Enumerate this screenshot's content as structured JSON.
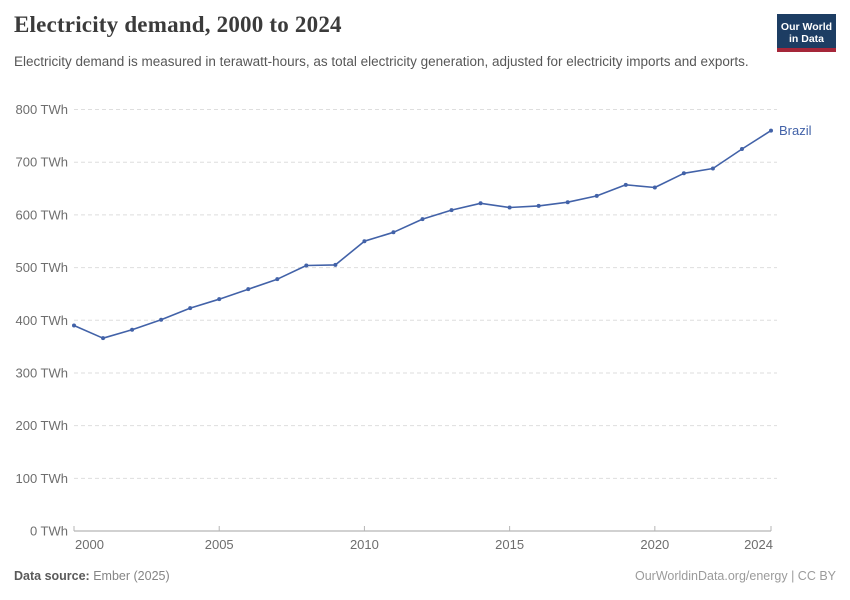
{
  "header": {
    "title": "Electricity demand, 2000 to 2024",
    "subtitle": "Electricity demand is measured in terawatt-hours, as total electricity generation, adjusted for electricity imports and exports.",
    "logo": {
      "line1": "Our World",
      "line2": "in Data"
    }
  },
  "chart_data": {
    "type": "line",
    "title": "Electricity demand, 2000 to 2024",
    "unit": "TWh",
    "x": [
      2000,
      2001,
      2002,
      2003,
      2004,
      2005,
      2006,
      2007,
      2008,
      2009,
      2010,
      2011,
      2012,
      2013,
      2014,
      2015,
      2016,
      2017,
      2018,
      2019,
      2020,
      2021,
      2022,
      2023,
      2024
    ],
    "series": [
      {
        "name": "Brazil",
        "color": "#4262a8",
        "values": [
          390,
          366,
          382,
          401,
          423,
          440,
          459,
          478,
          504,
          505,
          550,
          567,
          592,
          609,
          622,
          614,
          617,
          624,
          636,
          657,
          652,
          679,
          688,
          725,
          760
        ]
      }
    ],
    "xlim": [
      2000,
      2024
    ],
    "ylim": [
      0,
      800
    ],
    "yticks": [
      0,
      100,
      200,
      300,
      400,
      500,
      600,
      700,
      800
    ],
    "ytick_suffix": " TWh",
    "xticks": [
      2000,
      2005,
      2010,
      2015,
      2020,
      2024
    ],
    "grid": "dashed horizontal",
    "legend_position": "end-of-line"
  },
  "footer": {
    "source_label": "Data source:",
    "source_value": " Ember (2025)",
    "credit": "OurWorldinData.org/energy | CC BY"
  },
  "colors": {
    "line": "#4262a8",
    "grid": "#dedede",
    "axis": "#a3a3a3",
    "tick": "#b5b5b5",
    "tick_label": "#6e6e6e",
    "logo_bg": "#1d3d63",
    "logo_red": "#a52639"
  }
}
